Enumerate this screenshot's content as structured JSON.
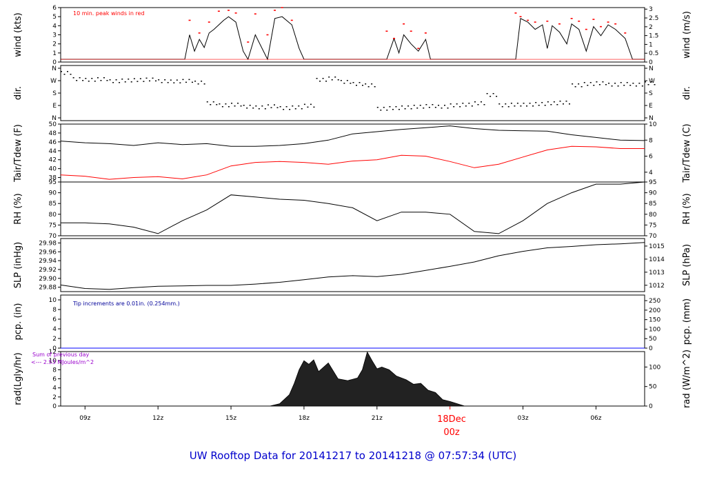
{
  "title": "UW Rooftop Data for 20141217  to  20141218 @ 07:57:34  (UTC)",
  "colors": {
    "main": "#000000",
    "red": "#ff0000",
    "blue": "#0000ff",
    "navy": "#000099",
    "purple": "#9900cc",
    "title": "#0000cc"
  },
  "x_axis": {
    "ticks": [
      {
        "label": "09z",
        "hour": -15
      },
      {
        "label": "12z",
        "hour": -12
      },
      {
        "label": "15z",
        "hour": -9
      },
      {
        "label": "18z",
        "hour": -6
      },
      {
        "label": "21z",
        "hour": -3
      },
      {
        "label": "03z",
        "hour": 3
      },
      {
        "label": "06z",
        "hour": 6
      }
    ],
    "day_label": "18Dec",
    "day_hour_label": "00z",
    "range_hours": [
      -16,
      8
    ]
  },
  "panels": {
    "wind": {
      "left_label": "wind (kts)",
      "right_label": "wind (m/s)",
      "left_ticks": [
        "0",
        "1",
        "2",
        "3",
        "4",
        "5",
        "6"
      ],
      "left_range": [
        0,
        6
      ],
      "right_ticks": [
        "0",
        "0.5",
        "1",
        "1.5",
        "2",
        "2.5",
        "3"
      ],
      "note": "10 min. peak winds in red"
    },
    "dir": {
      "left_label": "dir.",
      "right_label": "dir.",
      "ticks": [
        "N",
        "E",
        "S",
        "W",
        "N"
      ]
    },
    "temp": {
      "left_label": "Tair/Tdew (F)",
      "right_label": "Tair/Tdew (C)",
      "left_ticks": [
        "38",
        "40",
        "42",
        "44",
        "46",
        "48",
        "50"
      ],
      "left_range": [
        37,
        50
      ],
      "right_ticks": [
        "4",
        "6",
        "8",
        "10"
      ]
    },
    "rh": {
      "left_label": "RH (%)",
      "right_label": "RH (%)",
      "left_ticks": [
        "70",
        "75",
        "80",
        "85",
        "90",
        "95"
      ],
      "left_range": [
        70,
        95
      ],
      "right_ticks": [
        "70",
        "75",
        "80",
        "85",
        "90",
        "95"
      ]
    },
    "slp": {
      "left_label": "SLP (inHg)",
      "right_label": "SLP (hPa)",
      "left_ticks": [
        "29.88",
        "29.90",
        "29.92",
        "29.94",
        "29.96",
        "29.98"
      ],
      "left_range": [
        29.87,
        29.99
      ],
      "right_ticks": [
        "1012",
        "1013",
        "1014",
        "1015"
      ]
    },
    "pcp": {
      "left_label": "pcp. (in)",
      "right_label": "pcp. (mm)",
      "left_ticks": [
        "0",
        "2",
        "4",
        "6",
        "8",
        "10"
      ],
      "left_range": [
        0,
        11
      ],
      "right_ticks": [
        "0",
        "50",
        "100",
        "150",
        "200",
        "250"
      ],
      "note": "Tip increments are 0.01in. (0.254mm.)"
    },
    "rad": {
      "left_label": "rad(Lgly/hr)",
      "right_label": "rad (W/m^2)",
      "left_ticks": [
        "0",
        "2",
        "4",
        "6",
        "8",
        "10",
        "12"
      ],
      "left_range": [
        0,
        12
      ],
      "right_ticks": [
        "0",
        "50",
        "100"
      ],
      "note_line1": "Sum of previous day",
      "note_line2": "<--- 2.53 MJoules/m^2"
    }
  },
  "chart_data": [
    {
      "type": "line",
      "name": "wind",
      "x_unit": "hours relative to 18Dec 00z",
      "series": [
        {
          "name": "wind speed (kts)",
          "x": [
            -16.0,
            -10.9,
            -10.7,
            -10.5,
            -10.3,
            -10.1,
            -9.9,
            -9.7,
            -9.5,
            -9.3,
            -9.1,
            -8.8,
            -8.5,
            -8.3,
            -8.0,
            -7.5,
            -7.2,
            -6.9,
            -6.5,
            -6.2,
            -6.0,
            -5.7,
            -5.4,
            -2.6,
            -2.3,
            -2.1,
            -1.9,
            -1.6,
            -1.3,
            -1.0,
            -0.8,
            2.7,
            2.9,
            3.2,
            3.5,
            3.8,
            4.0,
            4.2,
            4.5,
            4.8,
            5.0,
            5.3,
            5.6,
            5.9,
            6.2,
            6.5,
            6.8,
            7.2,
            7.5,
            8.0
          ],
          "y": [
            0.3,
            0.3,
            3.0,
            1.2,
            2.5,
            1.6,
            3.2,
            3.6,
            4.1,
            4.6,
            5.0,
            4.4,
            1.2,
            0.3,
            3.0,
            0.3,
            4.8,
            5.0,
            4.1,
            1.5,
            0.3,
            0.3,
            0.3,
            0.3,
            2.6,
            1.0,
            3.0,
            2.0,
            1.2,
            2.5,
            0.3,
            0.3,
            4.8,
            4.4,
            3.6,
            4.1,
            1.5,
            4.0,
            3.3,
            2.0,
            4.2,
            3.6,
            1.2,
            3.9,
            2.9,
            4.1,
            3.6,
            2.6,
            0.3,
            0.3
          ]
        },
        {
          "name": "10 min. peak (kts)",
          "x": [
            -10.7,
            -10.3,
            -9.9,
            -9.5,
            -9.1,
            -8.8,
            -8.3,
            -8.0,
            -7.5,
            -7.2,
            -6.9,
            -6.5,
            -2.6,
            -2.3,
            -1.9,
            -1.6,
            -1.3,
            -1.0,
            2.7,
            2.9,
            3.2,
            3.5,
            4.0,
            4.5,
            5.0,
            5.3,
            5.6,
            5.9,
            6.2,
            6.5,
            6.8,
            7.2
          ],
          "y": [
            4.6,
            3.2,
            4.4,
            5.6,
            5.7,
            5.4,
            2.2,
            5.3,
            3.0,
            5.7,
            6.0,
            4.6,
            3.4,
            2.6,
            4.2,
            3.4,
            1.5,
            3.2,
            5.4,
            5.0,
            4.6,
            4.4,
            4.5,
            4.2,
            4.8,
            4.5,
            3.6,
            4.7,
            3.9,
            4.4,
            4.2,
            3.2
          ]
        }
      ]
    },
    {
      "type": "scatter",
      "name": "wind direction",
      "x_unit": "hours relative to 18Dec 00z",
      "y_unit": "degrees",
      "series": [
        {
          "name": "dir",
          "x": [
            -16.0,
            -15.5,
            -15.0,
            -14.5,
            -14.0,
            -13.5,
            -13.0,
            -12.5,
            -12.0,
            -11.5,
            -11.0,
            -10.5,
            -10.0,
            -9.5,
            -9.0,
            -8.5,
            -8.0,
            -7.5,
            -7.0,
            -6.5,
            -6.0,
            -5.5,
            -5.0,
            -4.5,
            -4.0,
            -3.5,
            -3.0,
            -2.5,
            -2.0,
            -1.5,
            -1.0,
            -0.5,
            0.0,
            0.5,
            1.0,
            1.5,
            2.0,
            2.5,
            3.0,
            3.5,
            4.0,
            4.5,
            5.0,
            5.5,
            6.0,
            6.5,
            7.0,
            7.5,
            8.0
          ],
          "y": [
            330,
            285,
            280,
            285,
            270,
            275,
            278,
            282,
            270,
            268,
            272,
            260,
            110,
            95,
            100,
            85,
            80,
            88,
            75,
            80,
            92,
            280,
            290,
            265,
            250,
            240,
            70,
            75,
            80,
            85,
            90,
            85,
            95,
            100,
            110,
            170,
            95,
            100,
            100,
            105,
            110,
            115,
            240,
            250,
            255,
            245,
            250,
            245,
            255
          ]
        }
      ]
    },
    {
      "type": "line",
      "name": "temperature",
      "x_unit": "hours relative to 18Dec 00z",
      "series": [
        {
          "name": "Tair (F)",
          "x": [
            -16,
            -15,
            -14,
            -13,
            -12,
            -11,
            -10,
            -9,
            -8,
            -7,
            -6,
            -5,
            -4,
            -3,
            -2,
            -1,
            0,
            1,
            2,
            3,
            4,
            5,
            6,
            7,
            8
          ],
          "y": [
            46.2,
            45.8,
            45.6,
            45.2,
            45.8,
            45.4,
            45.6,
            45.0,
            45.0,
            45.2,
            45.6,
            46.4,
            47.8,
            48.3,
            48.8,
            49.2,
            49.6,
            49.0,
            48.6,
            48.5,
            48.4,
            47.6,
            47.0,
            46.4,
            46.3
          ]
        },
        {
          "name": "Tdew (F)",
          "x": [
            -16,
            -15,
            -14,
            -13,
            -12,
            -11,
            -10,
            -9,
            -8,
            -7,
            -6,
            -5,
            -4,
            -3,
            -2,
            -1,
            0,
            1,
            2,
            3,
            4,
            5,
            6,
            7,
            8
          ],
          "y": [
            38.6,
            38.3,
            37.6,
            38.0,
            38.2,
            37.7,
            38.6,
            40.6,
            41.4,
            41.6,
            41.4,
            41.0,
            41.7,
            42.0,
            43.0,
            42.8,
            41.6,
            40.2,
            41.0,
            42.6,
            44.2,
            45.0,
            44.9,
            44.5,
            44.5
          ]
        }
      ]
    },
    {
      "type": "line",
      "name": "relative humidity",
      "x_unit": "hours relative to 18Dec 00z",
      "series": [
        {
          "name": "RH (%)",
          "x": [
            -16,
            -15,
            -14,
            -13,
            -12,
            -11,
            -10,
            -9,
            -8,
            -7,
            -6,
            -5,
            -4,
            -3,
            -2,
            -1,
            0,
            1,
            2,
            3,
            4,
            5,
            6,
            7,
            8
          ],
          "y": [
            76,
            76,
            75.5,
            74,
            71,
            77,
            82,
            89,
            88,
            87,
            86.5,
            85,
            83,
            77,
            81,
            81,
            80,
            72,
            71,
            77,
            85,
            90,
            94,
            94,
            95
          ]
        }
      ]
    },
    {
      "type": "line",
      "name": "sea level pressure",
      "x_unit": "hours relative to 18Dec 00z",
      "series": [
        {
          "name": "SLP (inHg)",
          "x": [
            -16,
            -15,
            -14,
            -13,
            -12,
            -11,
            -10,
            -9,
            -8,
            -7,
            -6,
            -5,
            -4,
            -3,
            -2,
            -1,
            0,
            1,
            2,
            3,
            4,
            5,
            6,
            7,
            8
          ],
          "y": [
            29.885,
            29.877,
            29.875,
            29.879,
            29.882,
            29.883,
            29.884,
            29.884,
            29.887,
            29.891,
            29.897,
            29.903,
            29.906,
            29.904,
            29.909,
            29.918,
            29.927,
            29.937,
            29.951,
            29.961,
            29.969,
            29.972,
            29.976,
            29.978,
            29.981
          ]
        }
      ]
    },
    {
      "type": "line",
      "name": "precipitation",
      "x_unit": "hours relative to 18Dec 00z",
      "series": [
        {
          "name": "pcp (in)",
          "x": [
            -16,
            8
          ],
          "y": [
            0,
            0
          ]
        }
      ]
    },
    {
      "type": "area",
      "name": "radiation",
      "x_unit": "hours relative to 18Dec 00z",
      "series": [
        {
          "name": "rad (Lgly/hr)",
          "x": [
            -16,
            -7.4,
            -7.0,
            -6.6,
            -6.4,
            -6.2,
            -6.0,
            -5.8,
            -5.6,
            -5.4,
            -5.0,
            -4.6,
            -4.2,
            -3.8,
            -3.6,
            -3.4,
            -3.2,
            -3.0,
            -2.8,
            -2.5,
            -2.2,
            -1.8,
            -1.5,
            -1.2,
            -0.9,
            -0.6,
            -0.3,
            0.0,
            0.6,
            8
          ],
          "y": [
            0,
            0,
            0.5,
            2.5,
            5.0,
            8.0,
            10.0,
            9.2,
            10.2,
            7.6,
            9.5,
            6.0,
            5.6,
            6.2,
            8.0,
            11.9,
            10.0,
            8.2,
            8.6,
            8.0,
            6.6,
            5.8,
            4.8,
            5.0,
            3.5,
            3.0,
            1.4,
            1.0,
            0,
            0
          ]
        }
      ]
    }
  ]
}
